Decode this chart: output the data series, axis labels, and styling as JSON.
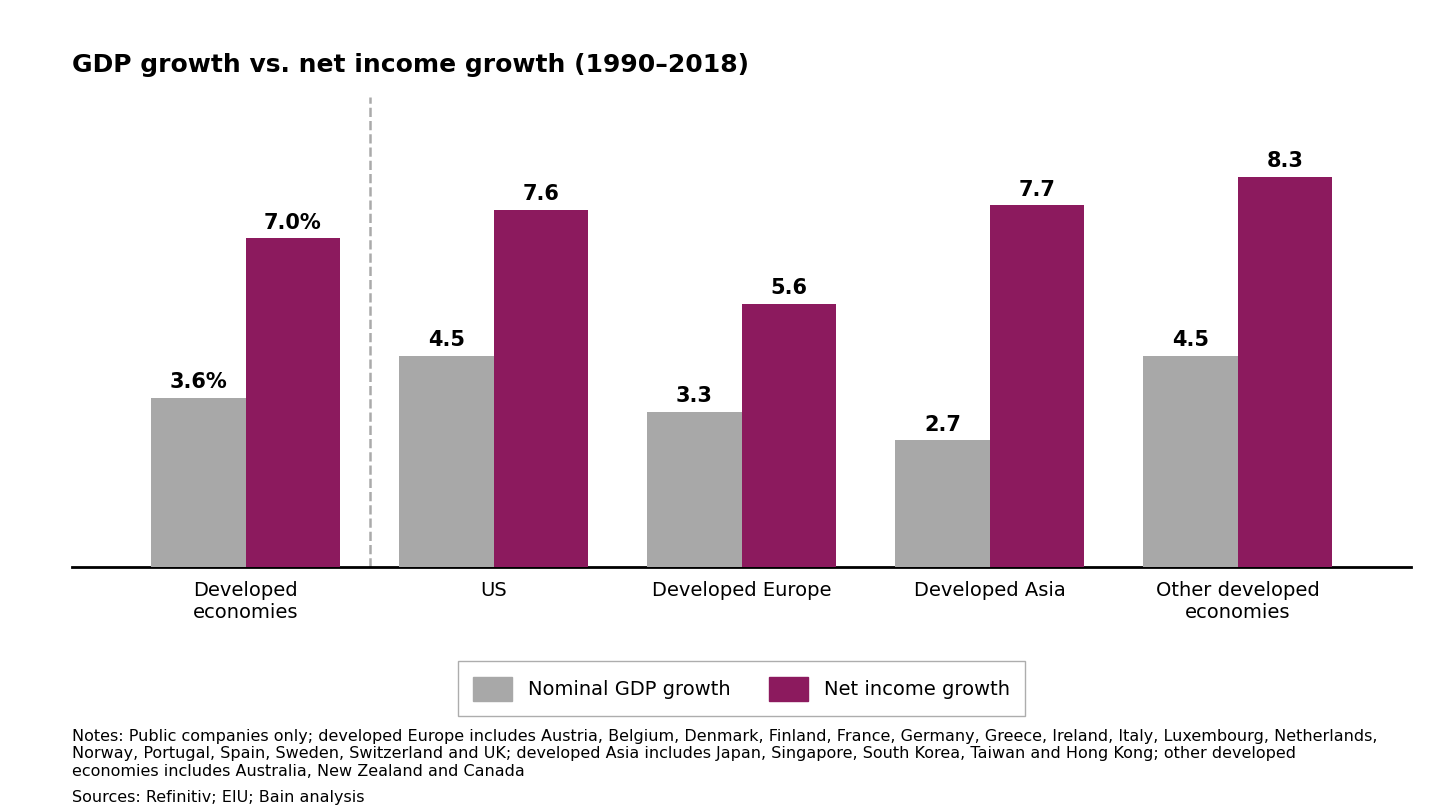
{
  "title": "GDP growth vs. net income growth (1990–2018)",
  "categories": [
    "Developed\neconomies",
    "US",
    "Developed Europe",
    "Developed Asia",
    "Other developed\neconomies"
  ],
  "gdp_values": [
    3.6,
    4.5,
    3.3,
    2.7,
    4.5
  ],
  "net_income_values": [
    7.0,
    7.6,
    5.6,
    7.7,
    8.3
  ],
  "gdp_labels": [
    "3.6%",
    "4.5",
    "3.3",
    "2.7",
    "4.5"
  ],
  "net_income_labels": [
    "7.0%",
    "7.6",
    "5.6",
    "7.7",
    "8.3"
  ],
  "gdp_color": "#a8a8a8",
  "net_income_color": "#8c1a5e",
  "bar_width": 0.38,
  "ylim": [
    0,
    10
  ],
  "legend_gdp": "Nominal GDP growth",
  "legend_net": "Net income growth",
  "notes_line1": "Notes: Public companies only; developed Europe includes Austria, Belgium, Denmark, Finland, France, Germany, Greece, Ireland, Italy, Luxembourg, Netherlands,",
  "notes_line2": "Norway, Portugal, Spain, Sweden, Switzerland and UK; developed Asia includes Japan, Singapore, South Korea, Taiwan and Hong Kong; other developed",
  "notes_line3": "economies includes Australia, New Zealand and Canada",
  "sources": "Sources: Refinitiv; EIU; Bain analysis",
  "title_fontsize": 18,
  "label_fontsize": 15,
  "tick_fontsize": 14,
  "legend_fontsize": 14,
  "notes_fontsize": 11.5,
  "background_color": "#ffffff"
}
